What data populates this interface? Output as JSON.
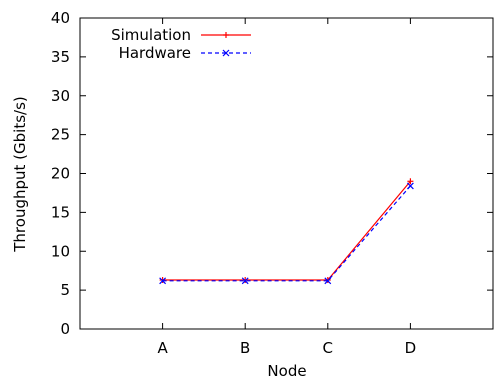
{
  "chart_data": {
    "type": "line",
    "categories": [
      "A",
      "B",
      "C",
      "D"
    ],
    "xlabel": "Node",
    "ylabel": "Throughput (Gbits/s)",
    "ylim": [
      0,
      40
    ],
    "yticks": [
      "0",
      "5",
      "10",
      "15",
      "20",
      "25",
      "30",
      "35",
      "40"
    ],
    "grid": false,
    "legend_position": "top-left",
    "series": [
      {
        "name": "Simulation",
        "values": [
          6.3,
          6.3,
          6.3,
          19.0
        ],
        "color": "#ff0000",
        "line_style": "solid",
        "marker": "plus"
      },
      {
        "name": "Hardware",
        "values": [
          6.2,
          6.2,
          6.2,
          18.4
        ],
        "color": "#0000ff",
        "line_style": "dashed",
        "marker": "cross"
      }
    ]
  }
}
